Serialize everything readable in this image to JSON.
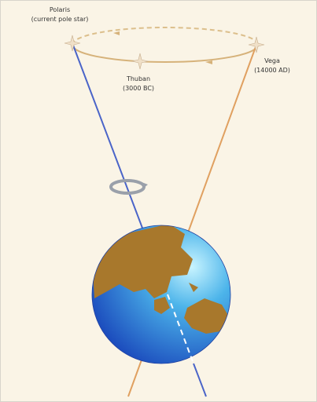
{
  "stars": [
    {
      "name": "Polaris",
      "note": "(current pole star)"
    },
    {
      "name": "Thuban",
      "note": "(3000 BC)"
    },
    {
      "name": "Vega",
      "note": "(14000 AD)"
    }
  ]
}
